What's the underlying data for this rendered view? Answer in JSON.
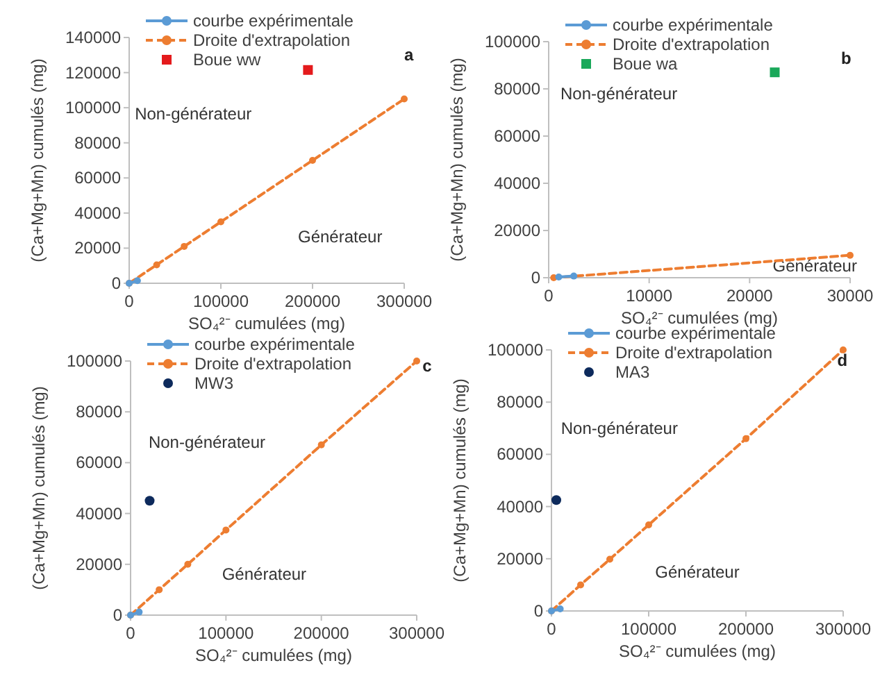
{
  "chart_data": [
    {
      "type": "scatter",
      "xlabel": "SO₄²⁻ cumulées (mg)",
      "ylabel": "(Ca+Mg+Mn) cumulés (mg)",
      "xlim": [
        0,
        300000
      ],
      "xticks": [
        0,
        100000,
        200000,
        300000
      ],
      "ylim": [
        0,
        140000
      ],
      "yticks": [
        0,
        20000,
        40000,
        60000,
        80000,
        100000,
        120000,
        140000
      ],
      "grid": false,
      "legend": "top left",
      "series": [
        {
          "name": "courbe expérimentale",
          "type": "line",
          "color": "#5b9bd5",
          "marker": "circle",
          "line_style": "solid",
          "x": [
            0,
            9000
          ],
          "values": [
            0,
            1500
          ]
        },
        {
          "name": "Droite d'extrapolation",
          "type": "line",
          "color": "#ed7d31",
          "marker": "circle",
          "line_style": "dashed",
          "x": [
            0,
            30000,
            60000,
            100000,
            200000,
            300000
          ],
          "values": [
            0,
            10500,
            21000,
            35000,
            70000,
            105000
          ]
        },
        {
          "name": "Boue ww",
          "color": "#e41a1c",
          "marker": "square",
          "x": [
            195000
          ],
          "values": [
            121500
          ]
        }
      ],
      "annotations": [
        "a",
        "Non-générateur",
        "Générateur"
      ]
    },
    {
      "type": "scatter",
      "xlabel": "SO₄²⁻ cumulées (mg)",
      "ylabel": "(Ca+Mg+Mn) cumulés (mg)",
      "xlim": [
        0,
        30000
      ],
      "xticks": [
        0,
        10000,
        20000,
        30000
      ],
      "ylim": [
        0,
        100000
      ],
      "yticks": [
        0,
        20000,
        40000,
        60000,
        80000,
        100000
      ],
      "grid": false,
      "legend": "top left",
      "series": [
        {
          "name": "courbe expérimentale",
          "type": "line",
          "color": "#5b9bd5",
          "marker": "circle",
          "line_style": "solid",
          "x": [
            1000,
            2500
          ],
          "values": [
            300,
            700
          ]
        },
        {
          "name": "Droite d'extrapolation",
          "type": "line",
          "color": "#ed7d31",
          "marker": "circle",
          "line_style": "dashed",
          "x": [
            500,
            30000
          ],
          "values": [
            0,
            9500
          ]
        },
        {
          "name": "Boue wa",
          "color": "#1aa85a",
          "marker": "square",
          "x": [
            22500
          ],
          "values": [
            87000
          ]
        }
      ],
      "annotations": [
        "b",
        "Non-générateur",
        "Générateur"
      ]
    },
    {
      "type": "scatter",
      "xlabel": "SO₄²⁻ cumulées (mg)",
      "ylabel": "(Ca+Mg+Mn) cumulés (mg)",
      "xlim": [
        0,
        300000
      ],
      "xticks": [
        0,
        100000,
        200000,
        300000
      ],
      "ylim": [
        0,
        100000
      ],
      "yticks": [
        0,
        20000,
        40000,
        60000,
        80000,
        100000
      ],
      "grid": false,
      "legend": "top left",
      "series": [
        {
          "name": "courbe expérimentale",
          "type": "line",
          "color": "#5b9bd5",
          "marker": "circle",
          "line_style": "solid",
          "x": [
            0,
            9000
          ],
          "values": [
            0,
            1200
          ]
        },
        {
          "name": "Droite d'extrapolation",
          "type": "line",
          "color": "#ed7d31",
          "marker": "circle",
          "line_style": "dashed",
          "x": [
            0,
            30000,
            60000,
            100000,
            200000,
            300000
          ],
          "values": [
            0,
            10000,
            20000,
            33500,
            67000,
            100000
          ]
        },
        {
          "name": "MW3",
          "color": "#0d2a5c",
          "marker": "circle",
          "x": [
            20000
          ],
          "values": [
            45000
          ]
        }
      ],
      "annotations": [
        "c",
        "Non-générateur",
        "Générateur"
      ]
    },
    {
      "type": "scatter",
      "xlabel": "SO₄²⁻ cumulées (mg)",
      "ylabel": "(Ca+Mg+Mn) cumulés (mg)",
      "xlim": [
        0,
        300000
      ],
      "xticks": [
        0,
        100000,
        200000,
        300000
      ],
      "ylim": [
        0,
        100000
      ],
      "yticks": [
        0,
        20000,
        40000,
        60000,
        80000,
        100000
      ],
      "grid": false,
      "legend": "top left",
      "series": [
        {
          "name": "courbe expérimentale",
          "type": "line",
          "color": "#5b9bd5",
          "marker": "circle",
          "line_style": "solid",
          "x": [
            0,
            9000
          ],
          "values": [
            0,
            800
          ]
        },
        {
          "name": "Droite d'extrapolation",
          "type": "line",
          "color": "#ed7d31",
          "marker": "circle",
          "line_style": "dashed",
          "x": [
            0,
            30000,
            60000,
            100000,
            200000,
            300000
          ],
          "values": [
            0,
            10000,
            19800,
            33000,
            66000,
            100000
          ]
        },
        {
          "name": "MA3",
          "color": "#0d2a5c",
          "marker": "circle",
          "x": [
            5000
          ],
          "values": [
            42500
          ]
        }
      ],
      "annotations": [
        "d",
        "Non-générateur",
        "Générateur"
      ]
    }
  ]
}
